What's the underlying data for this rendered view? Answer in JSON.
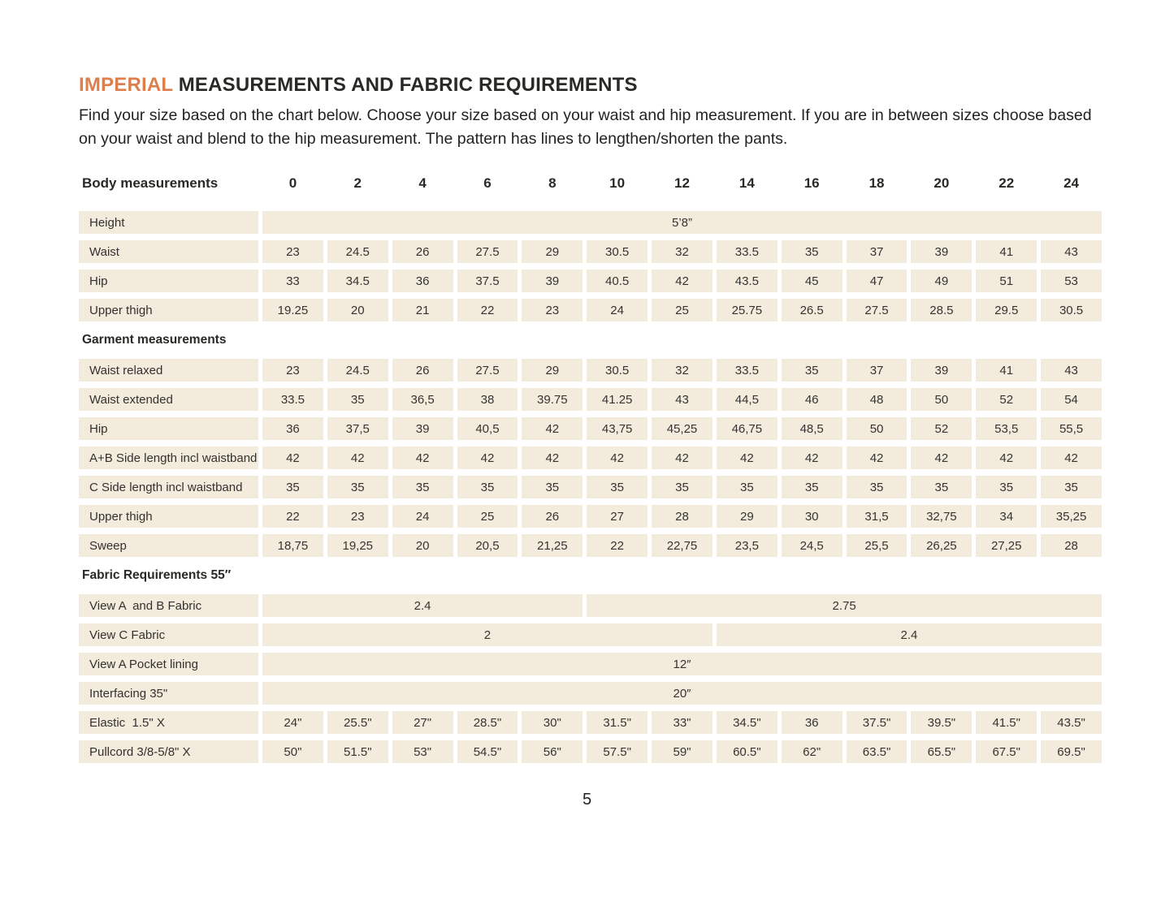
{
  "page": {
    "title_highlight": "IMPERIAL",
    "title_rest": " MEASUREMENTS AND FABRIC REQUIREMENTS",
    "intro": "Find your size based on the chart below. Choose your size based on your waist and hip measurement. If you are in between sizes choose based on your waist and blend to the hip measurement. The pattern has lines to lengthen/shorten the pants.",
    "page_number": "5"
  },
  "colors": {
    "accent_orange": "#dc7f4c",
    "cell_beige": "#f3ecdc",
    "text_dark": "#2e2c2a"
  },
  "table": {
    "header_label": "Body measurements",
    "sizes": [
      "0",
      "2",
      "4",
      "6",
      "8",
      "10",
      "12",
      "14",
      "16",
      "18",
      "20",
      "22",
      "24"
    ],
    "sections": [
      {
        "heading": null,
        "rows": [
          {
            "label": "Height",
            "spans": [
              {
                "text": "5’8”",
                "cols": 13
              }
            ]
          },
          {
            "label": "Waist",
            "cells": [
              "23",
              "24.5",
              "26",
              "27.5",
              "29",
              "30.5",
              "32",
              "33.5",
              "35",
              "37",
              "39",
              "41",
              "43"
            ]
          },
          {
            "label": "Hip",
            "cells": [
              "33",
              "34.5",
              "36",
              "37.5",
              "39",
              "40.5",
              "42",
              "43.5",
              "45",
              "47",
              "49",
              "51",
              "53"
            ]
          },
          {
            "label": "Upper thigh",
            "cells": [
              "19.25",
              "20",
              "21",
              "22",
              "23",
              "24",
              "25",
              "25.75",
              "26.5",
              "27.5",
              "28.5",
              "29.5",
              "30.5"
            ]
          }
        ]
      },
      {
        "heading": "Garment measurements",
        "rows": [
          {
            "label": "Waist relaxed",
            "cells": [
              "23",
              "24.5",
              "26",
              "27.5",
              "29",
              "30.5",
              "32",
              "33.5",
              "35",
              "37",
              "39",
              "41",
              "43"
            ]
          },
          {
            "label": "Waist extended",
            "cells": [
              "33.5",
              "35",
              "36,5",
              "38",
              "39.75",
              "41.25",
              "43",
              "44,5",
              "46",
              "48",
              "50",
              "52",
              "54"
            ]
          },
          {
            "label": "Hip",
            "cells": [
              "36",
              "37,5",
              "39",
              "40,5",
              "42",
              "43,75",
              "45,25",
              "46,75",
              "48,5",
              "50",
              "52",
              "53,5",
              "55,5"
            ]
          },
          {
            "label": "A+B Side length incl waistband",
            "cells": [
              "42",
              "42",
              "42",
              "42",
              "42",
              "42",
              "42",
              "42",
              "42",
              "42",
              "42",
              "42",
              "42"
            ]
          },
          {
            "label": "C Side length incl waistband",
            "cells": [
              "35",
              "35",
              "35",
              "35",
              "35",
              "35",
              "35",
              "35",
              "35",
              "35",
              "35",
              "35",
              "35"
            ]
          },
          {
            "label": "Upper thigh",
            "cells": [
              "22",
              "23",
              "24",
              "25",
              "26",
              "27",
              "28",
              "29",
              "30",
              "31,5",
              "32,75",
              "34",
              "35,25"
            ]
          },
          {
            "label": "Sweep",
            "cells": [
              "18,75",
              "19,25",
              "20",
              "20,5",
              "21,25",
              "22",
              "22,75",
              "23,5",
              "24,5",
              "25,5",
              "26,25",
              "27,25",
              "28"
            ]
          }
        ]
      },
      {
        "heading": "Fabric Requirements 55″",
        "rows": [
          {
            "label": "View A  and B Fabric",
            "spans": [
              {
                "text": "2.4",
                "cols": 5
              },
              {
                "text": "2.75",
                "cols": 8
              }
            ]
          },
          {
            "label": "View C Fabric",
            "spans": [
              {
                "text": "2",
                "cols": 7
              },
              {
                "text": "2.4",
                "cols": 6
              }
            ]
          },
          {
            "label": "View A Pocket lining",
            "spans": [
              {
                "text": "12″",
                "cols": 13
              }
            ]
          },
          {
            "label": "Interfacing 35\"",
            "spans": [
              {
                "text": "20″",
                "cols": 13
              }
            ]
          },
          {
            "label": "Elastic  1.5\" X",
            "cells": [
              "24\"",
              "25.5\"",
              "27\"",
              "28.5\"",
              "30\"",
              "31.5\"",
              "33\"",
              "34.5\"",
              "36",
              "37.5\"",
              "39.5\"",
              "41.5\"",
              "43.5\""
            ]
          },
          {
            "label": "Pullcord 3/8-5/8\" X",
            "cells": [
              "50\"",
              "51.5\"",
              "53\"",
              "54.5\"",
              "56\"",
              "57.5\"",
              "59\"",
              "60.5\"",
              "62\"",
              "63.5\"",
              "65.5\"",
              "67.5\"",
              "69.5\""
            ]
          }
        ]
      }
    ]
  }
}
